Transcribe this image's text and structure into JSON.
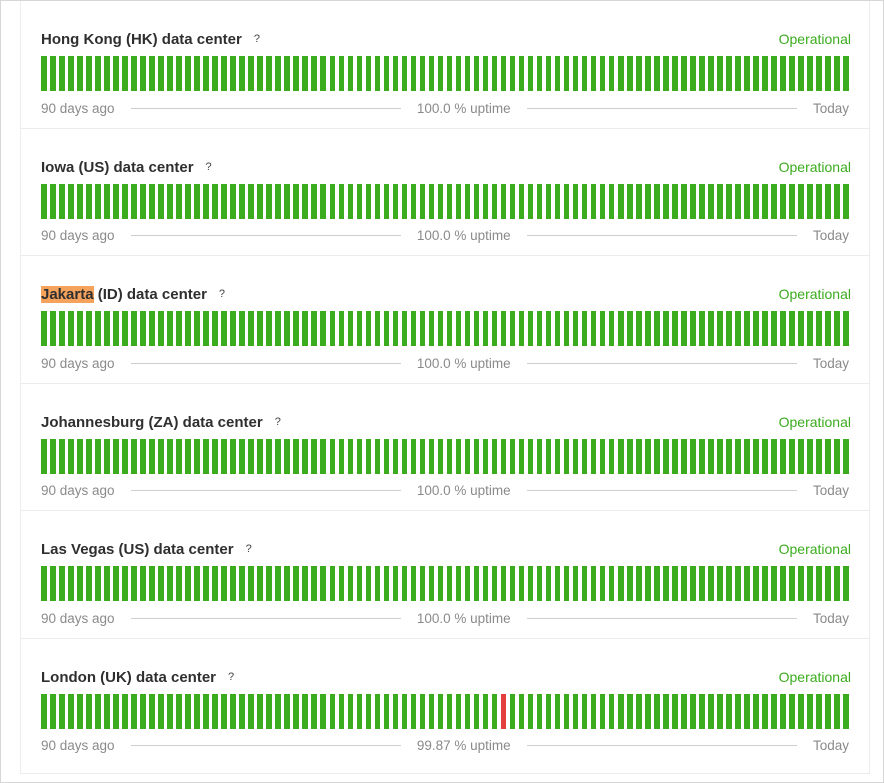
{
  "colors": {
    "up": "#3bac1e",
    "down": "#e43f3f",
    "highlight": "#f5a35c"
  },
  "components": [
    {
      "name_highlight": "",
      "name_rest": "Hong Kong (HK) data center",
      "help": "?",
      "status": "Operational",
      "uptime": "100.0 % uptime",
      "start_label": "90 days ago",
      "end_label": "Today",
      "days": 90,
      "down_days": []
    },
    {
      "name_highlight": "",
      "name_rest": "Iowa (US) data center",
      "help": "?",
      "status": "Operational",
      "uptime": "100.0 % uptime",
      "start_label": "90 days ago",
      "end_label": "Today",
      "days": 90,
      "down_days": []
    },
    {
      "name_highlight": "Jakarta",
      "name_rest": " (ID) data center",
      "help": "?",
      "status": "Operational",
      "uptime": "100.0 % uptime",
      "start_label": "90 days ago",
      "end_label": "Today",
      "days": 90,
      "down_days": []
    },
    {
      "name_highlight": "",
      "name_rest": "Johannesburg (ZA) data center",
      "help": "?",
      "status": "Operational",
      "uptime": "100.0 % uptime",
      "start_label": "90 days ago",
      "end_label": "Today",
      "days": 90,
      "down_days": []
    },
    {
      "name_highlight": "",
      "name_rest": "Las Vegas (US) data center",
      "help": "?",
      "status": "Operational",
      "uptime": "100.0 % uptime",
      "start_label": "90 days ago",
      "end_label": "Today",
      "days": 90,
      "down_days": []
    },
    {
      "name_highlight": "",
      "name_rest": "London (UK) data center",
      "help": "?",
      "status": "Operational",
      "uptime": "99.87 % uptime",
      "start_label": "90 days ago",
      "end_label": "Today",
      "days": 90,
      "down_days": [
        51
      ]
    }
  ]
}
